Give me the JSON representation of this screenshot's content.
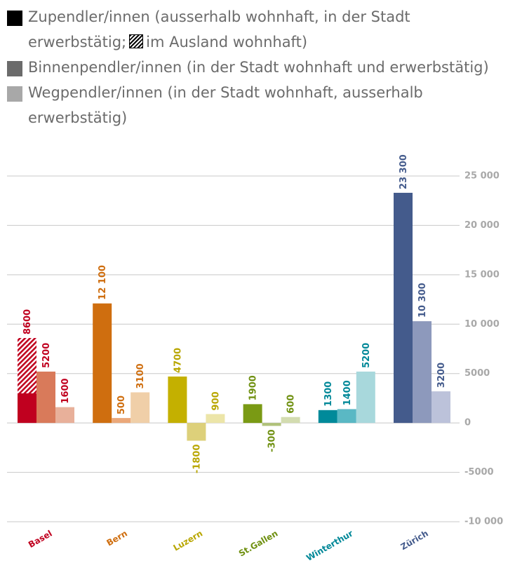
{
  "chart_data": {
    "type": "bar",
    "categories": [
      "Basel",
      "Bern",
      "Luzern",
      "St.Gallen",
      "Winterthur",
      "Zürich"
    ],
    "category_colors": [
      "#c0001f",
      "#cf6e0f",
      "#b8a600",
      "#6f9010",
      "#008898",
      "#445b8c"
    ],
    "series": [
      {
        "name": "Zupendler/innen (ausserhalb wohnhaft, in der Stadt erwerbstätig;",
        "color": "#000000",
        "colors": [
          "#c0001f",
          "#cf6e0f",
          "#c4b000",
          "#7a9a14",
          "#008a9a",
          "#445b8c"
        ],
        "values": [
          8600,
          12100,
          4700,
          1900,
          1300,
          23300
        ],
        "value_labels": [
          "8600",
          "12 100",
          "4700",
          "1900",
          "1300",
          "23 300"
        ],
        "abroad": [
          5600,
          null,
          null,
          null,
          null,
          null
        ]
      },
      {
        "name": "Binnenpendler/innen (in der Stadt wohnhaft und erwerbstätig)",
        "color": "#6b6b6b",
        "colors": [
          "#d97a5a",
          "#eba87a",
          "#ddd07a",
          "#b0c27a",
          "#5ab8c4",
          "#8d99bc"
        ],
        "values": [
          5200,
          500,
          -1800,
          -300,
          1400,
          10300
        ],
        "value_labels": [
          "5200",
          "500",
          "-1800",
          "-300",
          "1400",
          "10 300"
        ]
      },
      {
        "name": "Wegpendler/innen (in der Stadt wohnhaft, ausserhalb erwerbstätig)",
        "color": "#a8a8a8",
        "colors": [
          "#e8b09a",
          "#f0cfa8",
          "#ece5a8",
          "#d3dcb0",
          "#a8d8dc",
          "#bcc2da"
        ],
        "values": [
          1600,
          3100,
          900,
          600,
          5200,
          3200
        ],
        "value_labels": [
          "1600",
          "3100",
          "900",
          "600",
          "5200",
          "3200"
        ]
      }
    ],
    "abroad_label": "im Ausland wohnhaft)",
    "ylim": [
      -10000,
      25000
    ],
    "yticks": [
      {
        "value": -10000,
        "label": "-10 000"
      },
      -5000,
      0,
      5000,
      {
        "value": 10000,
        "label": "10 000"
      },
      {
        "value": 15000,
        "label": "15 000"
      },
      {
        "value": 20000,
        "label": "20 000"
      },
      {
        "value": 25000,
        "label": "25 000"
      }
    ],
    "grid": true
  }
}
